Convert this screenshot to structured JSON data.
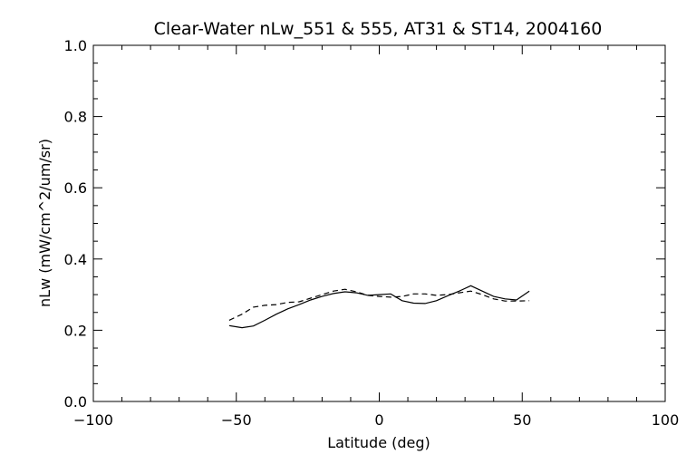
{
  "chart_data": {
    "type": "line",
    "title": "Clear-Water nLw_551 & 555, AT31 & ST14, 2004160",
    "xlabel": "Latitude (deg)",
    "ylabel": "nLw (mW/cm^2/um/sr)",
    "xlim": [
      -100,
      100
    ],
    "ylim": [
      0.0,
      1.0
    ],
    "x_ticks": [
      -100,
      -50,
      0,
      50,
      100
    ],
    "x_tick_labels": [
      "−100",
      "−50",
      "0",
      "50",
      "100"
    ],
    "y_ticks": [
      0.0,
      0.2,
      0.4,
      0.6,
      0.8,
      1.0
    ],
    "y_tick_labels": [
      "0.0",
      "0.2",
      "0.4",
      "0.6",
      "0.8",
      "1.0"
    ],
    "grid": false,
    "series": [
      {
        "style": "solid",
        "color": "#000000",
        "x": [
          -52.5,
          -48,
          -44,
          -40,
          -36,
          -32,
          -28,
          -24,
          -20,
          -16,
          -12,
          -8,
          -4,
          0,
          4,
          8,
          12,
          16,
          20,
          24,
          28,
          32,
          36,
          40,
          44,
          48,
          52.5
        ],
        "y": [
          0.213,
          0.207,
          0.212,
          0.228,
          0.245,
          0.26,
          0.272,
          0.285,
          0.295,
          0.303,
          0.308,
          0.305,
          0.298,
          0.3,
          0.302,
          0.283,
          0.276,
          0.275,
          0.283,
          0.297,
          0.31,
          0.325,
          0.31,
          0.295,
          0.288,
          0.285,
          0.31
        ]
      },
      {
        "style": "dashed",
        "color": "#000000",
        "x": [
          -52.5,
          -48,
          -44,
          -40,
          -36,
          -32,
          -28,
          -24,
          -20,
          -16,
          -12,
          -8,
          -4,
          0,
          4,
          8,
          12,
          16,
          20,
          24,
          28,
          32,
          36,
          40,
          44,
          48,
          52.5
        ],
        "y": [
          0.228,
          0.245,
          0.265,
          0.27,
          0.272,
          0.278,
          0.28,
          0.29,
          0.3,
          0.31,
          0.315,
          0.308,
          0.298,
          0.295,
          0.293,
          0.295,
          0.302,
          0.302,
          0.298,
          0.3,
          0.305,
          0.31,
          0.3,
          0.288,
          0.282,
          0.282,
          0.283
        ]
      }
    ]
  }
}
